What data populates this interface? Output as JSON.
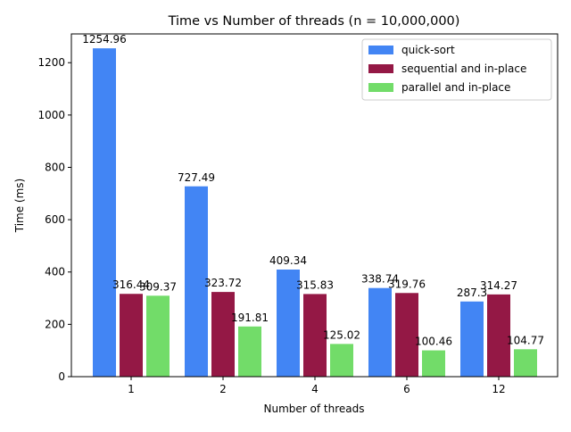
{
  "chart_data": {
    "type": "bar",
    "title": "Time vs Number of threads (n = 10,000,000)",
    "xlabel": "Number of threads",
    "ylabel": "Time (ms)",
    "categories": [
      "1",
      "2",
      "4",
      "6",
      "12"
    ],
    "ylim": [
      0,
      1310
    ],
    "yticks": [
      0,
      200,
      400,
      600,
      800,
      1000,
      1200
    ],
    "grid": false,
    "legend_position": "top-right",
    "series": [
      {
        "name": "quick-sort",
        "color": "#4285f4",
        "values": [
          1254.96,
          727.49,
          409.34,
          338.74,
          287.3
        ]
      },
      {
        "name": "sequential and in-place",
        "color": "#941845",
        "values": [
          316.44,
          323.72,
          315.83,
          319.76,
          314.27
        ]
      },
      {
        "name": "parallel and in-place",
        "color": "#72dc69",
        "values": [
          309.37,
          191.81,
          125.02,
          100.46,
          104.77
        ]
      }
    ]
  }
}
